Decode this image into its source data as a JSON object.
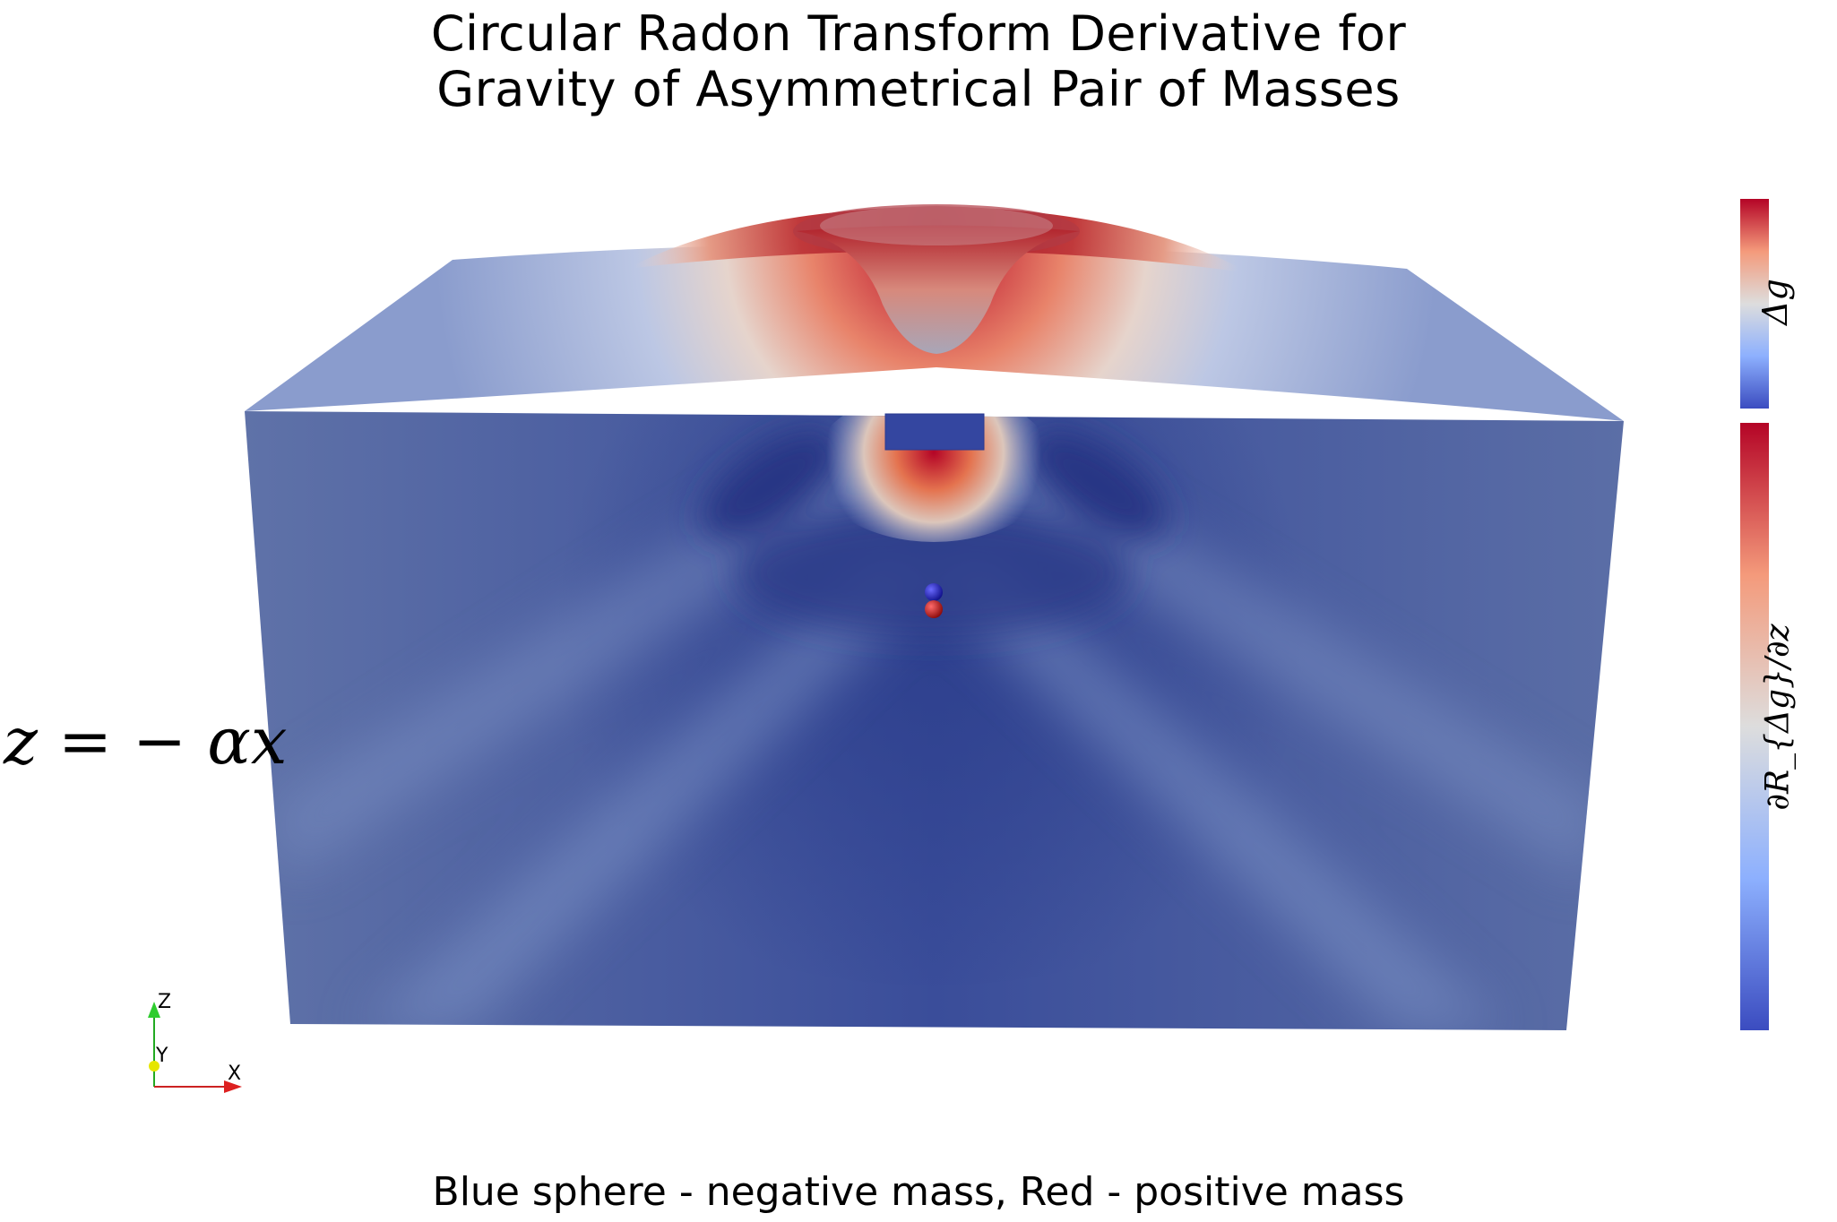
{
  "title": {
    "line1": "Circular Radon Transform Derivative for",
    "line2": "Gravity of Asymmetrical Pair of Masses"
  },
  "plane_label": "z = − αx",
  "caption": "Blue sphere - negative mass, Red - positive mass",
  "colorbars": {
    "top": {
      "label": "Δg"
    },
    "bottom": {
      "label": "∂R_{Δg}/∂z"
    }
  },
  "axes_widget": {
    "x": "X",
    "y": "Y",
    "z": "Z"
  },
  "spheres": {
    "negative_mass_color": "#1a1acc",
    "positive_mass_color": "#d01010"
  },
  "colors": {
    "colormap_low": "#3b4cc0",
    "colormap_mid": "#dddddd",
    "colormap_high": "#b40426",
    "volume_face": "#4a5fa3"
  }
}
